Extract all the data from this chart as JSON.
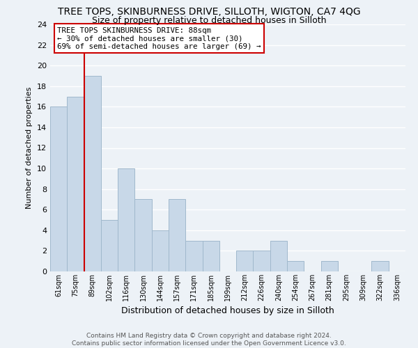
{
  "title": "TREE TOPS, SKINBURNESS DRIVE, SILLOTH, WIGTON, CA7 4QG",
  "subtitle": "Size of property relative to detached houses in Silloth",
  "xlabel": "Distribution of detached houses by size in Silloth",
  "ylabel": "Number of detached properties",
  "categories": [
    "61sqm",
    "75sqm",
    "89sqm",
    "102sqm",
    "116sqm",
    "130sqm",
    "144sqm",
    "157sqm",
    "171sqm",
    "185sqm",
    "199sqm",
    "212sqm",
    "226sqm",
    "240sqm",
    "254sqm",
    "267sqm",
    "281sqm",
    "295sqm",
    "309sqm",
    "322sqm",
    "336sqm"
  ],
  "values": [
    16,
    17,
    19,
    5,
    10,
    7,
    4,
    7,
    3,
    3,
    0,
    2,
    2,
    3,
    1,
    0,
    1,
    0,
    0,
    1,
    0
  ],
  "bar_color": "#c8d8e8",
  "bar_edge_color": "#a0b8cc",
  "highlight_line_color": "#cc0000",
  "annotation_title": "TREE TOPS SKINBURNESS DRIVE: 88sqm",
  "annotation_line1": "← 30% of detached houses are smaller (30)",
  "annotation_line2": "69% of semi-detached houses are larger (69) →",
  "annotation_box_color": "#ffffff",
  "annotation_box_edge": "#cc0000",
  "ylim": [
    0,
    24
  ],
  "yticks": [
    0,
    2,
    4,
    6,
    8,
    10,
    12,
    14,
    16,
    18,
    20,
    22,
    24
  ],
  "footer_line1": "Contains HM Land Registry data © Crown copyright and database right 2024.",
  "footer_line2": "Contains public sector information licensed under the Open Government Licence v3.0.",
  "bg_color": "#edf2f7",
  "grid_color": "#ffffff"
}
